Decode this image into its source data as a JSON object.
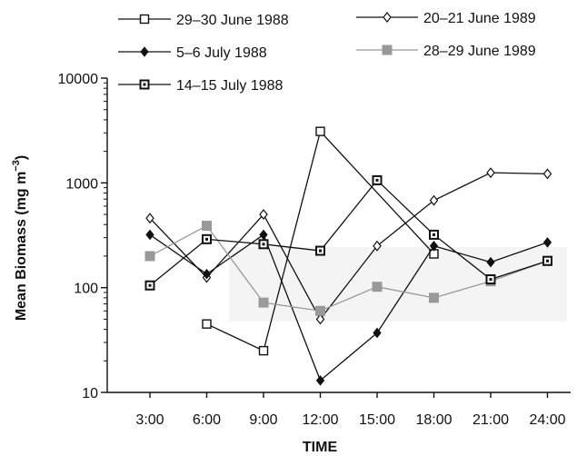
{
  "chart_data": {
    "type": "line",
    "title": "",
    "xlabel": "TIME",
    "ylabel": "Mean Biomass (mg m",
    "ylabel_sup": "−3",
    "ylabel_end": ")",
    "y_scale": "log",
    "ylim": [
      10,
      10000
    ],
    "y_ticks": [
      10,
      100,
      1000,
      10000
    ],
    "y_tick_labels": [
      "10",
      "100",
      "1000",
      "10000"
    ],
    "categories": [
      "3:00",
      "6:00",
      "9:00",
      "12:00",
      "15:00",
      "18:00",
      "21:00",
      "24:00"
    ],
    "legend_position": "top",
    "series": [
      {
        "name": "29–30 June 1988",
        "marker": "square-open",
        "color": "#111111",
        "values": [
          null,
          45,
          25,
          3100,
          null,
          210,
          null,
          null
        ]
      },
      {
        "name": "20–21 June 1989",
        "marker": "diamond-open",
        "color": "#111111",
        "values": [
          460,
          125,
          500,
          50,
          250,
          680,
          1250,
          1220
        ]
      },
      {
        "name": "5–6 July 1988",
        "marker": "diamond-filled",
        "color": "#111111",
        "values": [
          320,
          135,
          320,
          13,
          37,
          250,
          175,
          270
        ]
      },
      {
        "name": "28–29 June 1989",
        "marker": "square-filled",
        "color": "#999999",
        "values": [
          200,
          390,
          72,
          60,
          102,
          80,
          115,
          180
        ]
      },
      {
        "name": "14–15 July 1988",
        "marker": "square-dot",
        "color": "#111111",
        "values": [
          105,
          290,
          260,
          225,
          1060,
          320,
          120,
          180
        ]
      }
    ]
  }
}
